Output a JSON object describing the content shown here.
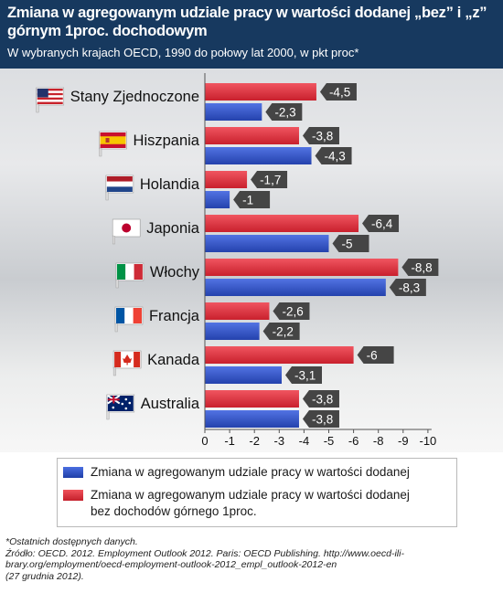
{
  "header": {
    "title": "Zmiana w agregowanym udziale pracy w wartości dodanej „bez” i „z” górnym 1proc. dochodowym",
    "subtitle": "W wybranych krajach OECD, 1990 do połowy lat 2000, w pkt proc*"
  },
  "legend": {
    "blue_label": "Zmiana w agregowanym udziale pracy w wartości dodanej",
    "red_label_line1": "Zmiana w agregowanym udziale pracy w wartości dodanej",
    "red_label_line2": "bez dochodów górnego 1proc."
  },
  "footer": {
    "note": "*Ostatnich dostępnych danych.",
    "source_line1": "Źródło: OECD. 2012. Employment Outlook 2012. Paris: OECD Publishing. http://www.oecd-ili-",
    "source_line2": "brary.org/employment/oecd-employment-outlook-2012_empl_outlook-2012-en",
    "source_line3": "(27 grudnia 2012)."
  },
  "chart_data": {
    "type": "bar",
    "orientation": "horizontal",
    "categories": [
      "Stany Zjednoczone",
      "Hiszpania",
      "Holandia",
      "Japonia",
      "Włochy",
      "Francja",
      "Kanada",
      "Australia"
    ],
    "flags": [
      "us-flag-icon",
      "spain-flag-icon",
      "netherlands-flag-icon",
      "japan-flag-icon",
      "italy-flag-icon",
      "france-flag-icon",
      "canada-flag-icon",
      "australia-flag-icon"
    ],
    "series": [
      {
        "name": "Zmiana w agregowanym udziale pracy w wartości dodanej bez dochodów górnego 1proc.",
        "color": "#e0313d",
        "values": [
          -4.5,
          -3.8,
          -1.7,
          -6.4,
          -8.8,
          -2.6,
          -6,
          -3.8
        ],
        "labels": [
          "-4,5",
          "-3,8",
          "-1,7",
          "-6,4",
          "-8,8",
          "-2,6",
          "-6",
          "-3,8"
        ]
      },
      {
        "name": "Zmiana w agregowanym udziale pracy w wartości dodanej",
        "color": "#2c55c9",
        "values": [
          -2.3,
          -4.3,
          -1,
          -5,
          -8.3,
          -2.2,
          -3.1,
          -3.8
        ],
        "labels": [
          "-2,3",
          "-4,3",
          "-1",
          "-5",
          "-8,3",
          "-2,2",
          "-3,1",
          "-3,8"
        ]
      }
    ],
    "x_ticks": [
      0,
      -1,
      -2,
      -3,
      -4,
      -5,
      -6,
      -8,
      -9,
      -10
    ],
    "x_tick_labels": [
      "0",
      "-1",
      "-2",
      "-3",
      "-4",
      "-5",
      "-6",
      "-8",
      "-9",
      "-10"
    ],
    "xlim": [
      0,
      -10
    ],
    "xlabel": "",
    "ylabel": "",
    "grid": false,
    "label_bg_color": "#454545"
  }
}
